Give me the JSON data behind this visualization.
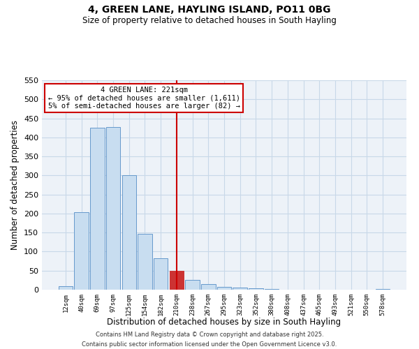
{
  "title": "4, GREEN LANE, HAYLING ISLAND, PO11 0BG",
  "subtitle": "Size of property relative to detached houses in South Hayling",
  "xlabel": "Distribution of detached houses by size in South Hayling",
  "ylabel": "Number of detached properties",
  "bar_labels": [
    "12sqm",
    "40sqm",
    "69sqm",
    "97sqm",
    "125sqm",
    "154sqm",
    "182sqm",
    "210sqm",
    "238sqm",
    "267sqm",
    "295sqm",
    "323sqm",
    "352sqm",
    "380sqm",
    "408sqm",
    "437sqm",
    "465sqm",
    "493sqm",
    "521sqm",
    "550sqm",
    "578sqm"
  ],
  "bar_values": [
    10,
    203,
    425,
    428,
    301,
    147,
    82,
    50,
    25,
    14,
    8,
    5,
    3,
    1,
    0,
    0,
    0,
    0,
    0,
    0,
    1
  ],
  "bar_color": "#c8ddf0",
  "bar_edge_color": "#6699cc",
  "highlight_bar_index": 7,
  "highlight_bar_color": "#cc3333",
  "highlight_bar_edge_color": "#cc3333",
  "vline_x": 7,
  "vline_color": "#cc0000",
  "ylim": [
    0,
    550
  ],
  "yticks": [
    0,
    50,
    100,
    150,
    200,
    250,
    300,
    350,
    400,
    450,
    500,
    550
  ],
  "annotation_title": "4 GREEN LANE: 221sqm",
  "annotation_line1": "← 95% of detached houses are smaller (1,611)",
  "annotation_line2": "5% of semi-detached houses are larger (82) →",
  "annotation_box_color": "#ffffff",
  "annotation_box_edge": "#cc0000",
  "grid_color": "#c8d8e8",
  "bg_color": "#edf2f8",
  "footer1": "Contains HM Land Registry data © Crown copyright and database right 2025.",
  "footer2": "Contains public sector information licensed under the Open Government Licence v3.0."
}
